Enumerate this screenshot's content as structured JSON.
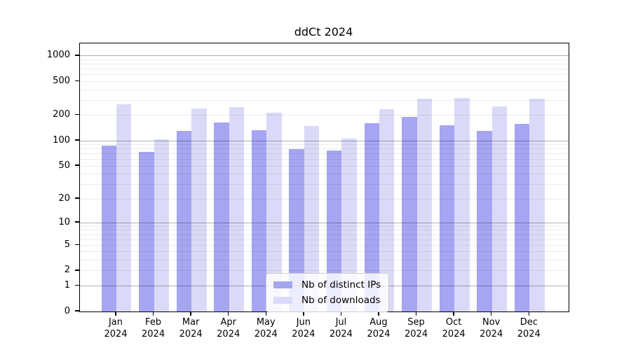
{
  "title": "ddCt 2024",
  "chart_data": {
    "type": "bar",
    "title": "ddCt 2024",
    "categories": [
      "Jan 2024",
      "Feb 2024",
      "Mar 2024",
      "Apr 2024",
      "May 2024",
      "Jun 2024",
      "Jul 2024",
      "Aug 2024",
      "Sep 2024",
      "Oct 2024",
      "Nov 2024",
      "Dec 2024"
    ],
    "series": [
      {
        "name": "Nb of distinct IPs",
        "color": "#a5a5f2",
        "values": [
          88,
          74,
          131,
          164,
          132,
          80,
          76,
          162,
          192,
          153,
          130,
          157
        ]
      },
      {
        "name": "Nb of downloads",
        "color": "#dadaf8",
        "values": [
          269,
          104,
          240,
          251,
          216,
          148,
          105,
          236,
          314,
          318,
          253,
          316
        ]
      }
    ],
    "xlabel": "",
    "ylabel": "",
    "yscale": "log1p",
    "ylim": [
      0,
      1400
    ],
    "y_ticks": [
      1000,
      500,
      200,
      100,
      50,
      20,
      10,
      5,
      2,
      1,
      0
    ],
    "grid": {
      "major_values": [
        1000,
        100,
        10,
        1
      ],
      "minor_values": [
        900,
        800,
        700,
        600,
        500,
        400,
        300,
        200,
        90,
        80,
        70,
        60,
        50,
        40,
        30,
        20,
        9,
        8,
        7,
        6,
        5,
        4,
        3,
        2
      ],
      "major_color": "rgba(0,0,0,0.30)",
      "minor_color": "rgba(0,0,0,0.075)"
    },
    "legend_position": "lower center"
  }
}
